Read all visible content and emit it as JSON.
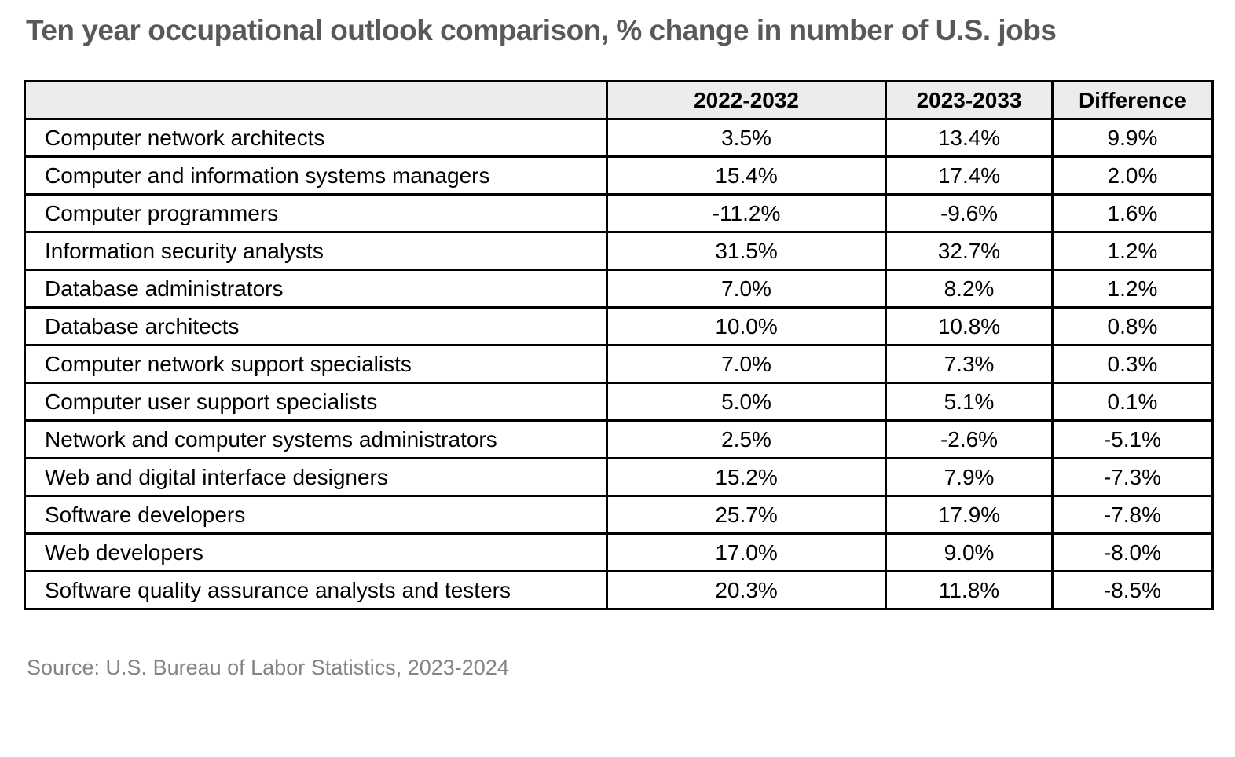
{
  "title": "Ten year occupational outlook comparison, % change in number of U.S. jobs",
  "source": "Source: U.S. Bureau of Labor Statistics, 2023-2024",
  "colors": {
    "header_bg": "#ececec",
    "border": "#000000",
    "title_text": "#595959",
    "source_text": "#848484",
    "cell_text": "#000000"
  },
  "chart_data": {
    "type": "table",
    "title": "Ten year occupational outlook comparison, % change in number of U.S. jobs",
    "columns": [
      "",
      "2022-2032",
      "2023-2033",
      "Difference"
    ],
    "rows": [
      {
        "occupation": "Computer network architects",
        "y2022_2032": "3.5%",
        "y2023_2033": "13.4%",
        "difference": "9.9%"
      },
      {
        "occupation": "Computer and information systems managers",
        "y2022_2032": "15.4%",
        "y2023_2033": "17.4%",
        "difference": "2.0%"
      },
      {
        "occupation": "Computer programmers",
        "y2022_2032": "-11.2%",
        "y2023_2033": "-9.6%",
        "difference": "1.6%"
      },
      {
        "occupation": "Information security analysts",
        "y2022_2032": "31.5%",
        "y2023_2033": "32.7%",
        "difference": "1.2%"
      },
      {
        "occupation": "Database administrators",
        "y2022_2032": "7.0%",
        "y2023_2033": "8.2%",
        "difference": "1.2%"
      },
      {
        "occupation": "Database architects",
        "y2022_2032": "10.0%",
        "y2023_2033": "10.8%",
        "difference": "0.8%"
      },
      {
        "occupation": "Computer network support specialists",
        "y2022_2032": "7.0%",
        "y2023_2033": "7.3%",
        "difference": "0.3%"
      },
      {
        "occupation": "Computer user support specialists",
        "y2022_2032": "5.0%",
        "y2023_2033": "5.1%",
        "difference": "0.1%"
      },
      {
        "occupation": "Network and computer systems administrators",
        "y2022_2032": "2.5%",
        "y2023_2033": "-2.6%",
        "difference": "-5.1%"
      },
      {
        "occupation": "Web and digital interface designers",
        "y2022_2032": "15.2%",
        "y2023_2033": "7.9%",
        "difference": "-7.3%"
      },
      {
        "occupation": "Software developers",
        "y2022_2032": "25.7%",
        "y2023_2033": "17.9%",
        "difference": "-7.8%"
      },
      {
        "occupation": "Web developers",
        "y2022_2032": "17.0%",
        "y2023_2033": "9.0%",
        "difference": "-8.0%"
      },
      {
        "occupation": "Software quality assurance analysts and testers",
        "y2022_2032": "20.3%",
        "y2023_2033": "11.8%",
        "difference": "-8.5%"
      }
    ]
  }
}
